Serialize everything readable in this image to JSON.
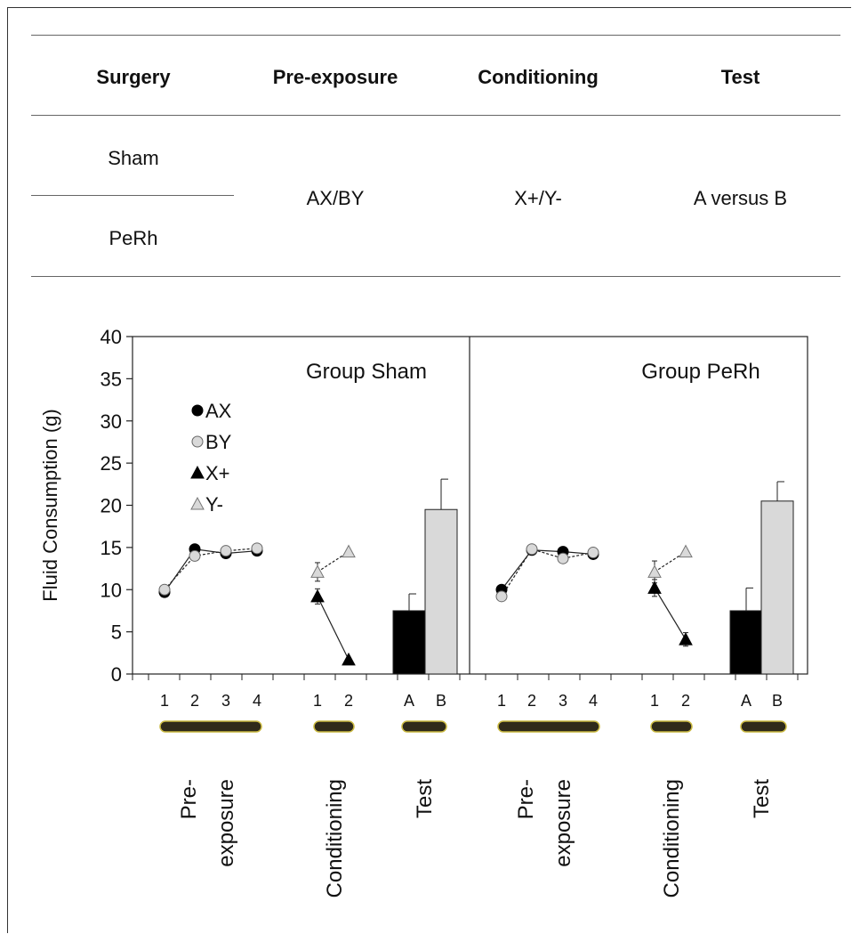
{
  "design_table": {
    "headers": [
      "Surgery",
      "Pre-exposure",
      "Conditioning",
      "Test"
    ],
    "surgery_groups": [
      "Sham",
      "PeRh"
    ],
    "pre_exposure": "AX/BY",
    "conditioning": "X+/Y-",
    "test": "A versus B"
  },
  "chart_data": {
    "type": "line",
    "ylabel": "Fluid Consumption (g)",
    "ylim": [
      0,
      40
    ],
    "yticks": [
      "0",
      "5",
      "10",
      "15",
      "20",
      "25",
      "30",
      "35",
      "40"
    ],
    "legend": [
      {
        "name": "AX",
        "marker": "circle-filled"
      },
      {
        "name": "BY",
        "marker": "circle-open"
      },
      {
        "name": "X+",
        "marker": "triangle-filled"
      },
      {
        "name": "Y-",
        "marker": "triangle-open"
      }
    ],
    "stage_labels": {
      "pre": [
        "Pre-",
        "exposure"
      ],
      "conditioning": "Conditioning",
      "test": "Test"
    },
    "panels": [
      {
        "title": "Group Sham",
        "pre_exposure": {
          "x": [
            "1",
            "2",
            "3",
            "4"
          ],
          "series": [
            {
              "name": "AX",
              "values": [
                9.7,
                14.8,
                14.3,
                14.6
              ]
            },
            {
              "name": "BY",
              "values": [
                10.0,
                14.0,
                14.6,
                14.9
              ]
            }
          ]
        },
        "conditioning": {
          "x": [
            "1",
            "2"
          ],
          "series": [
            {
              "name": "X+",
              "values": [
                9.2,
                1.7
              ],
              "errors": [
                0.9,
                0
              ]
            },
            {
              "name": "Y-",
              "values": [
                12.1,
                14.5
              ],
              "errors": [
                1.1,
                0
              ]
            }
          ]
        },
        "test": {
          "categories": [
            "A",
            "B"
          ],
          "values": [
            7.5,
            19.5
          ],
          "errors": [
            2.0,
            3.6
          ]
        }
      },
      {
        "title": "Group PeRh",
        "pre_exposure": {
          "x": [
            "1",
            "2",
            "3",
            "4"
          ],
          "series": [
            {
              "name": "AX",
              "values": [
                10.0,
                14.7,
                14.5,
                14.2
              ]
            },
            {
              "name": "BY",
              "values": [
                9.2,
                14.8,
                13.7,
                14.4
              ]
            }
          ]
        },
        "conditioning": {
          "x": [
            "1",
            "2"
          ],
          "series": [
            {
              "name": "X+",
              "values": [
                10.2,
                4.1
              ],
              "errors": [
                1.0,
                0.8
              ]
            },
            {
              "name": "Y-",
              "values": [
                12.1,
                14.5
              ],
              "errors": [
                1.3,
                0
              ]
            }
          ]
        },
        "test": {
          "categories": [
            "A",
            "B"
          ],
          "values": [
            7.5,
            20.5
          ],
          "errors": [
            2.7,
            2.3
          ]
        }
      }
    ],
    "colors": {
      "bar_A": "#000000",
      "bar_B": "#d9d9d9",
      "pill": "#2f2a1a",
      "pill_edge": "#c9b840"
    }
  }
}
